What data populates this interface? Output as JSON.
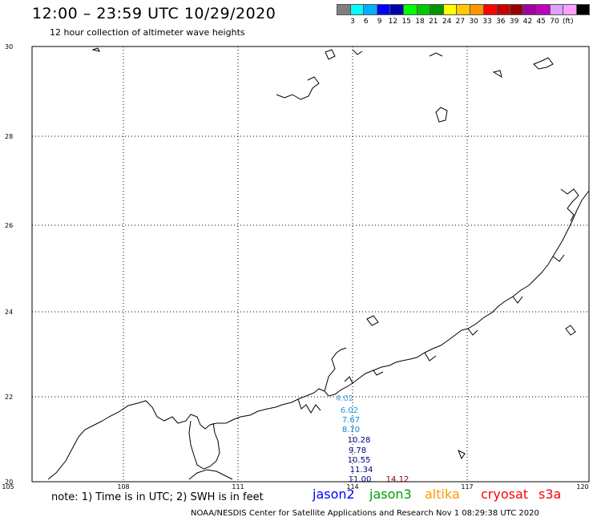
{
  "header": {
    "title": "12:00 – 23:59 UTC 10/29/2020",
    "subtitle": "12 hour collection of altimeter wave heights"
  },
  "scale": {
    "unit": "(ft)",
    "colors": [
      "#7f7f7f",
      "#00ffff",
      "#00b0ff",
      "#0000ff",
      "#0000aa",
      "#00ff00",
      "#00c800",
      "#009600",
      "#ffff00",
      "#ffc800",
      "#ff9600",
      "#ff0000",
      "#c80000",
      "#960000",
      "#a000a0",
      "#c000c0",
      "#dda0ff",
      "#ffa0ff",
      "#000000"
    ],
    "labels": [
      "3",
      "6",
      "9",
      "12",
      "15",
      "18",
      "21",
      "24",
      "27",
      "30",
      "33",
      "36",
      "39",
      "42",
      "45",
      "70"
    ]
  },
  "map": {
    "lat_labels": [
      "30",
      "28",
      "26",
      "24",
      "22",
      "20"
    ],
    "lon_labels": [
      "105",
      "108",
      "111",
      "114",
      "117",
      "120"
    ]
  },
  "observations": [
    {
      "value": "4.02",
      "color": "#40a8e0"
    },
    {
      "value": "6.02",
      "color": "#20a0e0"
    },
    {
      "value": "7.67",
      "color": "#1090d8"
    },
    {
      "value": "8.70",
      "color": "#1080d0"
    },
    {
      "value": "10.28",
      "color": "#000080"
    },
    {
      "value": "9.78",
      "color": "#000090"
    },
    {
      "value": "10.55",
      "color": "#000080"
    },
    {
      "value": "11.34",
      "color": "#000080"
    },
    {
      "value": "11.00",
      "color": "#000080"
    },
    {
      "value": "14.12",
      "color": "#800000"
    }
  ],
  "footer": {
    "note": "note: 1) Time is in UTC; 2) SWH is in feet",
    "credit": "NOAA/NESDIS Center for Satellite Applications and Research    Nov  1 08:29:38 UTC 2020"
  },
  "legend": [
    {
      "name": "jason2",
      "color": "#0000ff"
    },
    {
      "name": "jason3",
      "color": "#00a000"
    },
    {
      "name": "altika",
      "color": "#ff9900"
    },
    {
      "name": "cryosat",
      "color": "#ff0000"
    },
    {
      "name": "s3a",
      "color": "#ff0000"
    }
  ]
}
